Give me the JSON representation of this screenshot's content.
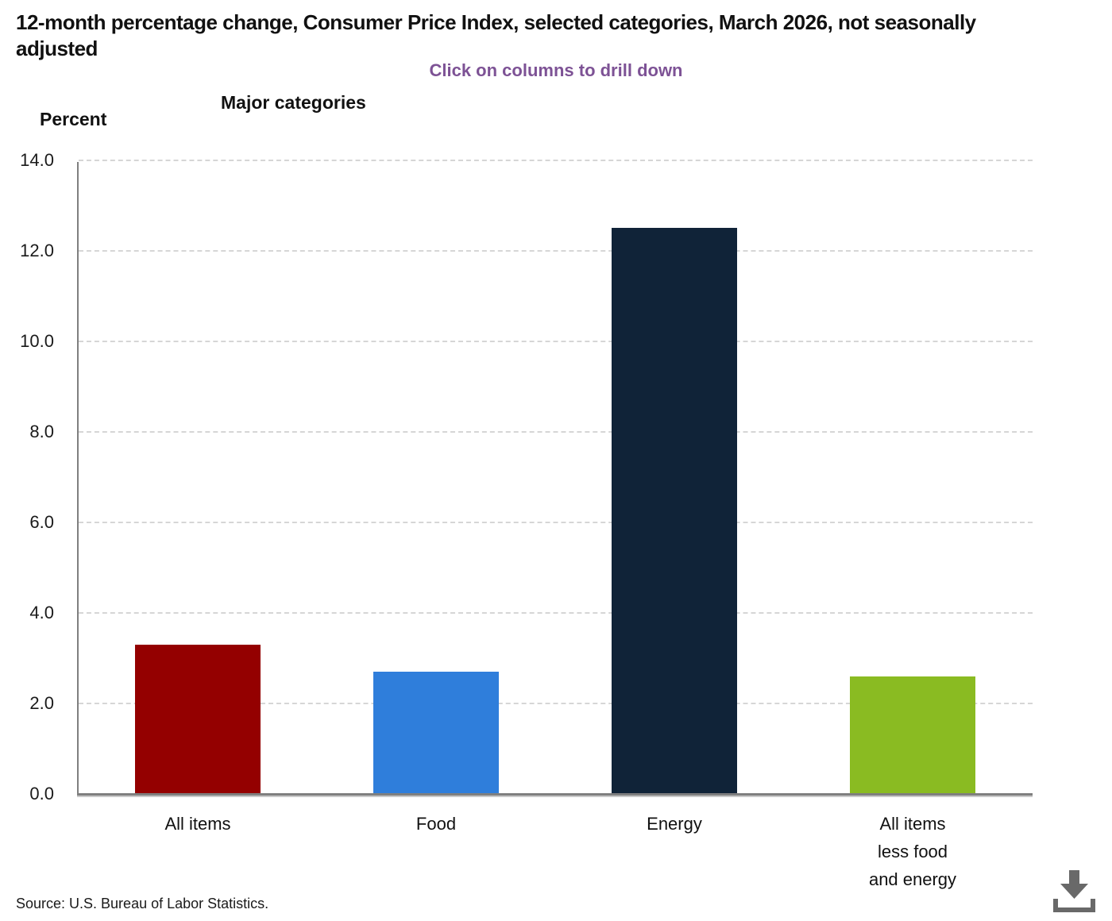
{
  "header": {
    "title": "12-month percentage change, Consumer Price Index, selected categories, March 2026, not seasonally adjusted",
    "instruction": "Click on columns to drill down",
    "chart_area_label": "Major categories",
    "y_axis_unit_label": "Percent"
  },
  "chart_data": {
    "type": "bar",
    "title": "12-month percentage change, Consumer Price Index, selected categories, March 2026, not seasonally adjusted",
    "subtitle": "Click on columns to drill down",
    "xlabel": "Major categories",
    "ylabel": "Percent",
    "categories": [
      "All items",
      "Food",
      "Energy",
      "All items less food and energy"
    ],
    "category_line_breaks": [
      [
        "All items"
      ],
      [
        "Food"
      ],
      [
        "Energy"
      ],
      [
        "All items",
        "less food",
        "and energy"
      ]
    ],
    "values": [
      3.3,
      2.7,
      12.5,
      2.6
    ],
    "bar_colors": [
      "#940000",
      "#2F7EDB",
      "#102338",
      "#8ABB22"
    ],
    "ylim": [
      0,
      14
    ],
    "ytick_step": 2,
    "ytick_labels": [
      "0.0",
      "2.0",
      "4.0",
      "6.0",
      "8.0",
      "10.0",
      "12.0",
      "14.0"
    ],
    "grid": "horizontal-dashed",
    "legend": "none"
  },
  "footer": {
    "source": "Source: U.S. Bureau of Labor Statistics.",
    "download_icon": "download-icon"
  },
  "colors": {
    "instruction_text": "#7D5295",
    "axis": "#7F7F7F",
    "gridline": "#D6D6D6",
    "download_icon": "#696969"
  }
}
